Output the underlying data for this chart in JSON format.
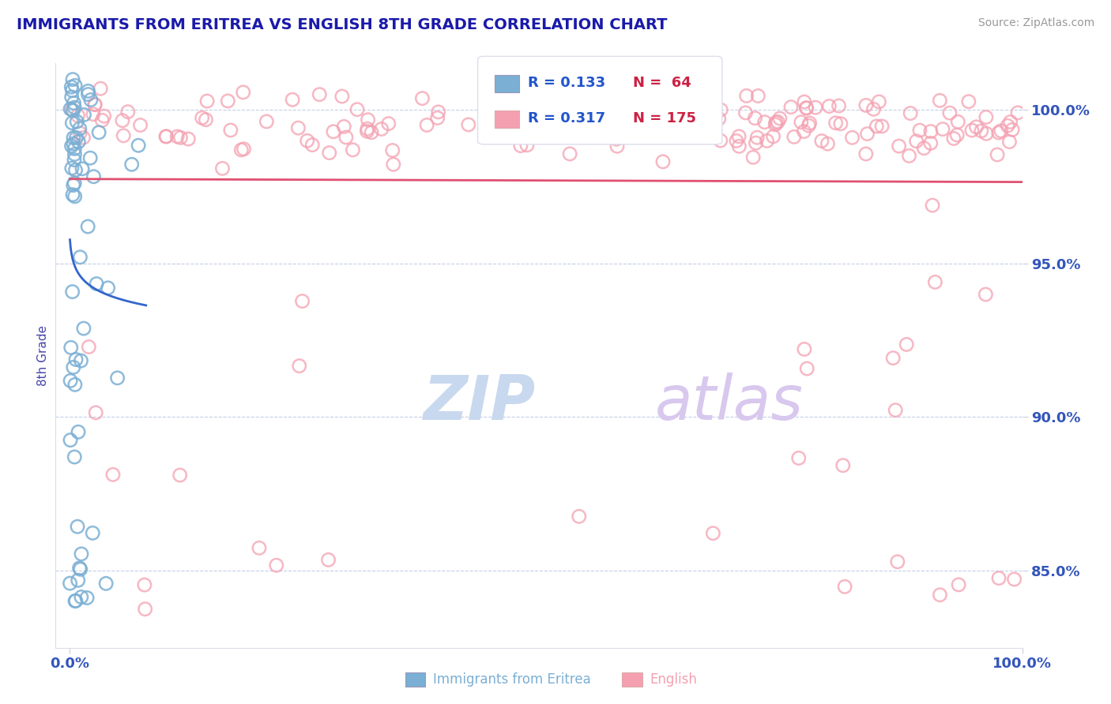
{
  "title": "IMMIGRANTS FROM ERITREA VS ENGLISH 8TH GRADE CORRELATION CHART",
  "source_text": "Source: ZipAtlas.com",
  "ylabel": "8th Grade",
  "x_label_blue": "Immigrants from Eritrea",
  "x_label_pink": "English",
  "xlim": [
    -1.5,
    100.0
  ],
  "ylim": [
    82.5,
    101.5
  ],
  "yticks": [
    85.0,
    90.0,
    95.0,
    100.0
  ],
  "xticks": [
    0.0,
    100.0
  ],
  "r_blue": 0.133,
  "n_blue": 64,
  "r_pink": 0.317,
  "n_pink": 175,
  "blue_color": "#7bafd4",
  "pink_color": "#f4a0b0",
  "blue_line_color": "#3366cc",
  "pink_line_color": "#e05070",
  "title_color": "#1a1aaa",
  "axis_label_color": "#4444aa",
  "tick_color": "#3355bb",
  "background_color": "#ffffff",
  "watermark_zip_color": "#c8d8ee",
  "watermark_atlas_color": "#d8c8ee",
  "legend_r_color": "#2255cc",
  "legend_n_color": "#cc2244",
  "grid_color": "#aabbdd"
}
